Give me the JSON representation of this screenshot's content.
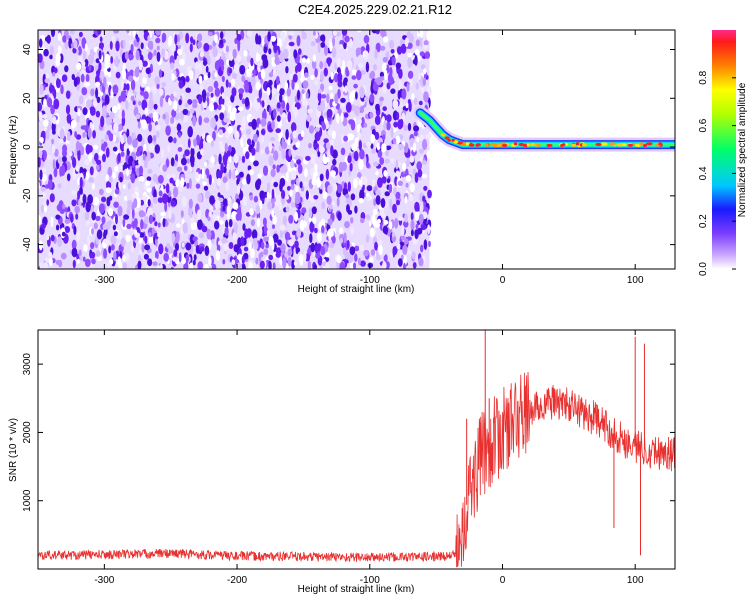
{
  "figure_title": "C2E4.2025.229.02.21.R12",
  "chart_data": [
    {
      "type": "heatmap",
      "xlabel": "Height of straight line (km)",
      "ylabel": "Frequency (Hz)",
      "xlim": [
        -350,
        130
      ],
      "ylim": [
        -50,
        48
      ],
      "xticks": [
        -300,
        -200,
        -100,
        0,
        100
      ],
      "yticks": [
        -40,
        -20,
        0,
        20,
        40
      ],
      "noise_region": {
        "x_range": [
          -350,
          -55
        ],
        "y_range": [
          -50,
          48
        ]
      },
      "signal_trace": {
        "x": [
          -62,
          -55,
          -50,
          -45,
          -40,
          -35,
          -30,
          -20,
          -10,
          0,
          20,
          40,
          60,
          80,
          100,
          110,
          120,
          130
        ],
        "y": [
          14,
          11,
          8,
          5,
          3,
          2,
          1,
          1,
          1,
          1,
          1,
          1,
          1,
          1,
          1,
          1,
          1,
          1
        ]
      },
      "colorbar": {
        "label": "Normalized spectral amplitude",
        "range": [
          0,
          1
        ],
        "ticks": [
          "0.0",
          "0.2",
          "0.4",
          "0.6",
          "0.8"
        ],
        "colormap": "rainbow"
      },
      "grid": false
    },
    {
      "type": "line",
      "xlabel": "Height of straight line (km)",
      "ylabel": "SNR (10 * v/v)",
      "xlim": [
        -350,
        130
      ],
      "ylim": [
        0,
        3500
      ],
      "xticks": [
        -300,
        -200,
        -100,
        0,
        100
      ],
      "yticks": [
        1000,
        2000,
        3000
      ],
      "color": "#e8302f",
      "envelope": {
        "x": [
          -350,
          -300,
          -250,
          -200,
          -150,
          -100,
          -50,
          -35,
          -30,
          -25,
          -20,
          -15,
          -10,
          -5,
          0,
          10,
          20,
          30,
          40,
          50,
          60,
          70,
          80,
          90,
          100,
          110,
          120,
          130
        ],
        "y": [
          200,
          210,
          230,
          190,
          180,
          170,
          180,
          200,
          700,
          1100,
          1400,
          1700,
          1800,
          1900,
          2000,
          2200,
          2300,
          2400,
          2450,
          2400,
          2300,
          2200,
          2050,
          1900,
          1800,
          1750,
          1700,
          1680
        ]
      },
      "spikes": [
        {
          "x": -27,
          "y": 2200
        },
        {
          "x": -13,
          "y": 3500
        },
        {
          "x": -10,
          "y": 2500
        },
        {
          "x": 84,
          "y": 600
        },
        {
          "x": 100,
          "y": 3400
        },
        {
          "x": 104,
          "y": 200
        },
        {
          "x": 107,
          "y": 3300
        }
      ],
      "grid": false
    }
  ]
}
